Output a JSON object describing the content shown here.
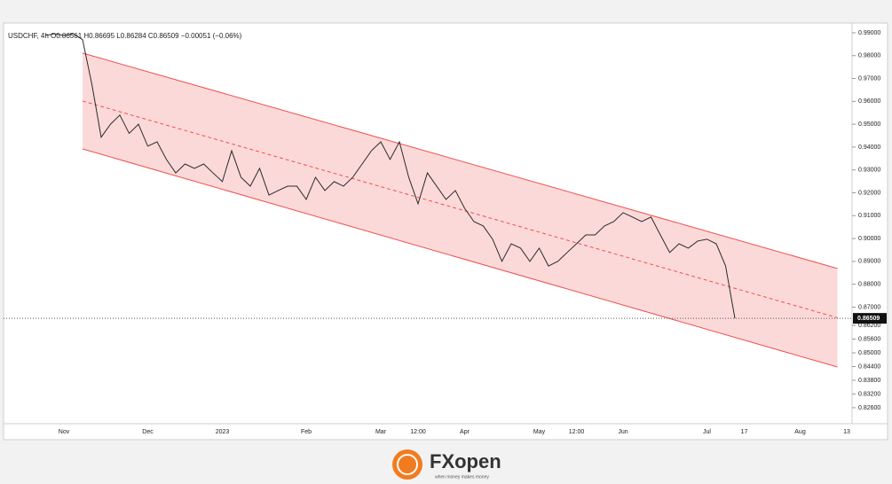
{
  "chart_data": {
    "type": "line",
    "title": "USDCHF, 4h  O0.86561  H0.86695  L0.86284  C0.86509  −0.00051 (−0.06%)",
    "categories": [
      null,
      null,
      "Nov",
      null,
      null,
      null,
      null,
      null,
      null,
      null,
      null,
      "Dec",
      null,
      null,
      null,
      null,
      null,
      null,
      null,
      "2023",
      null,
      null,
      null,
      null,
      null,
      null,
      null,
      null,
      "Feb",
      null,
      null,
      null,
      null,
      null,
      null,
      null,
      "Mar",
      null,
      null,
      null,
      "12:00",
      null,
      null,
      null,
      null,
      "Apr",
      null,
      null,
      null,
      null,
      null,
      null,
      null,
      "May",
      null,
      null,
      null,
      "12:00",
      null,
      null,
      null,
      null,
      "Jun",
      null,
      null,
      null,
      null,
      null,
      null,
      null,
      null,
      "Jul",
      null,
      null,
      null,
      "17",
      null,
      null,
      null,
      null,
      null,
      "Aug",
      null,
      null,
      null,
      null,
      "13"
    ],
    "series": [
      {
        "name": "USDCHF",
        "color": "#2b2b2b",
        "values": [
          0.9888,
          0.9896,
          0.9888,
          0.9896,
          0.987,
          0.9675,
          0.9443,
          0.95,
          0.954,
          0.946,
          0.95,
          0.9404,
          0.9423,
          0.9346,
          0.9287,
          0.9326,
          0.9307,
          0.9326,
          0.9287,
          0.9249,
          0.9384,
          0.9268,
          0.9229,
          0.9307,
          0.919,
          0.921,
          0.9229,
          0.9229,
          0.9171,
          0.9268,
          0.921,
          0.9249,
          0.9229,
          0.9268,
          0.9326,
          0.9384,
          0.9423,
          0.9346,
          0.9423,
          0.9268,
          0.9152,
          0.9287,
          0.9229,
          0.9171,
          0.921,
          0.9132,
          0.9074,
          0.9055,
          0.8997,
          0.89,
          0.8977,
          0.8958,
          0.89,
          0.8958,
          0.888,
          0.89,
          0.8939,
          0.8977,
          0.9016,
          0.9016,
          0.9055,
          0.9074,
          0.9113,
          0.9094,
          0.9074,
          0.9094,
          0.9016,
          0.8939,
          0.8977,
          0.8958,
          0.8989,
          0.8997,
          0.8977,
          0.888,
          0.86509,
          null,
          null,
          null,
          null,
          null,
          null,
          null,
          null,
          null,
          null,
          null,
          null
        ]
      }
    ],
    "last_price": 0.86509,
    "channel": {
      "color": "#f05050",
      "upper": [
        0.9811,
        0.8869
      ],
      "lower": [
        0.9392,
        0.8438
      ]
    },
    "ylim": [
      0.819,
      0.9927
    ],
    "yticks": [
      {
        "value": 0.826,
        "label": "0.82600"
      },
      {
        "value": 0.832,
        "label": "0.83200"
      },
      {
        "value": 0.838,
        "label": "0.83800"
      },
      {
        "value": 0.844,
        "label": "0.84400"
      },
      {
        "value": 0.85,
        "label": "0.85000"
      },
      {
        "value": 0.856,
        "label": "0.85600"
      },
      {
        "value": 0.862,
        "label": "0.86200"
      },
      {
        "value": 0.87,
        "label": "0.87000"
      },
      {
        "value": 0.88,
        "label": "0.88000"
      },
      {
        "value": 0.89,
        "label": "0.89000"
      },
      {
        "value": 0.9,
        "label": "0.90000"
      },
      {
        "value": 0.91,
        "label": "0.91000"
      },
      {
        "value": 0.92,
        "label": "0.92000"
      },
      {
        "value": 0.93,
        "label": "0.93000"
      },
      {
        "value": 0.94,
        "label": "0.94000"
      },
      {
        "value": 0.95,
        "label": "0.95000"
      },
      {
        "value": 0.96,
        "label": "0.96000"
      },
      {
        "value": 0.97,
        "label": "0.97000"
      },
      {
        "value": 0.98,
        "label": "0.98000"
      },
      {
        "value": 0.99,
        "label": "0.99000"
      }
    ],
    "grid": false
  },
  "logo": {
    "name": "FXopen",
    "tagline": "when money makes money"
  }
}
